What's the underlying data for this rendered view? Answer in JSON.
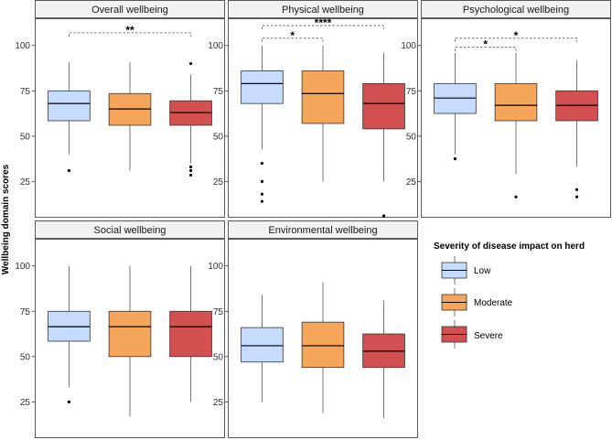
{
  "y_axis_label": "Wellbeing domain scores",
  "legend": {
    "title": "Severity of disease impact on herd",
    "items": [
      {
        "label": "Low",
        "color": "#c6dcff"
      },
      {
        "label": "Moderate",
        "color": "#f5a65b"
      },
      {
        "label": "Severe",
        "color": "#d25050"
      }
    ]
  },
  "chart_data": [
    {
      "type": "boxplot",
      "title": "Overall wellbeing",
      "ylim": [
        5,
        115
      ],
      "yticks": [
        25,
        50,
        75,
        100
      ],
      "categories": [
        "Low",
        "Moderate",
        "Severe"
      ],
      "boxes": [
        {
          "q1": 58.5,
          "median": 68,
          "q3": 75,
          "lower": 40,
          "upper": 91,
          "outliers": [
            31
          ]
        },
        {
          "q1": 56,
          "median": 65,
          "q3": 73.5,
          "lower": 31,
          "upper": 91,
          "outliers": []
        },
        {
          "q1": 56,
          "median": 63,
          "q3": 69.5,
          "lower": 35,
          "upper": 84,
          "outliers": [
            90,
            33,
            31,
            28.5
          ]
        }
      ],
      "significance": [
        {
          "from": 0,
          "to": 2,
          "label": "**",
          "y": 107
        }
      ]
    },
    {
      "type": "boxplot",
      "title": "Physical wellbeing",
      "ylim": [
        5,
        115
      ],
      "yticks": [
        25,
        50,
        75,
        100
      ],
      "categories": [
        "Low",
        "Moderate",
        "Severe"
      ],
      "boxes": [
        {
          "q1": 68,
          "median": 79,
          "q3": 86,
          "lower": 43,
          "upper": 100,
          "outliers": [
            35,
            25,
            18,
            14
          ]
        },
        {
          "q1": 57,
          "median": 73.5,
          "q3": 86,
          "lower": 25,
          "upper": 100,
          "outliers": []
        },
        {
          "q1": 54,
          "median": 68,
          "q3": 79,
          "lower": 25,
          "upper": 96,
          "outliers": [
            4
          ]
        }
      ],
      "significance": [
        {
          "from": 0,
          "to": 1,
          "label": "*",
          "y": 104
        },
        {
          "from": 0,
          "to": 2,
          "label": "****",
          "y": 111
        }
      ]
    },
    {
      "type": "boxplot",
      "title": "Psychological wellbeing",
      "ylim": [
        5,
        115
      ],
      "yticks": [
        25,
        50,
        75,
        100
      ],
      "categories": [
        "Low",
        "Moderate",
        "Severe"
      ],
      "boxes": [
        {
          "q1": 62.5,
          "median": 71,
          "q3": 79,
          "lower": 40,
          "upper": 96,
          "outliers": [
            37.5
          ]
        },
        {
          "q1": 58.5,
          "median": 67,
          "q3": 79,
          "lower": 29,
          "upper": 96,
          "outliers": [
            16.5
          ]
        },
        {
          "q1": 58.5,
          "median": 67,
          "q3": 75,
          "lower": 33,
          "upper": 92,
          "outliers": [
            20.5,
            16.5
          ]
        }
      ],
      "significance": [
        {
          "from": 0,
          "to": 1,
          "label": "*",
          "y": 99
        },
        {
          "from": 0,
          "to": 2,
          "label": "*",
          "y": 104
        }
      ]
    },
    {
      "type": "boxplot",
      "title": "Social wellbeing",
      "ylim": [
        5,
        115
      ],
      "yticks": [
        25,
        50,
        75,
        100
      ],
      "categories": [
        "Low",
        "Moderate",
        "Severe"
      ],
      "boxes": [
        {
          "q1": 58.5,
          "median": 66.5,
          "q3": 75,
          "lower": 33,
          "upper": 100,
          "outliers": [
            25
          ]
        },
        {
          "q1": 50,
          "median": 66.5,
          "q3": 75,
          "lower": 17,
          "upper": 100,
          "outliers": []
        },
        {
          "q1": 50,
          "median": 66.5,
          "q3": 75,
          "lower": 25,
          "upper": 100,
          "outliers": []
        }
      ],
      "significance": []
    },
    {
      "type": "boxplot",
      "title": "Environmental wellbeing",
      "ylim": [
        5,
        115
      ],
      "yticks": [
        25,
        50,
        75,
        100
      ],
      "categories": [
        "Low",
        "Moderate",
        "Severe"
      ],
      "boxes": [
        {
          "q1": 47,
          "median": 56,
          "q3": 66,
          "lower": 25,
          "upper": 84,
          "outliers": []
        },
        {
          "q1": 44,
          "median": 56,
          "q3": 69,
          "lower": 19,
          "upper": 91,
          "outliers": []
        },
        {
          "q1": 44,
          "median": 53,
          "q3": 62.5,
          "lower": 16,
          "upper": 81,
          "outliers": []
        }
      ],
      "significance": []
    }
  ]
}
